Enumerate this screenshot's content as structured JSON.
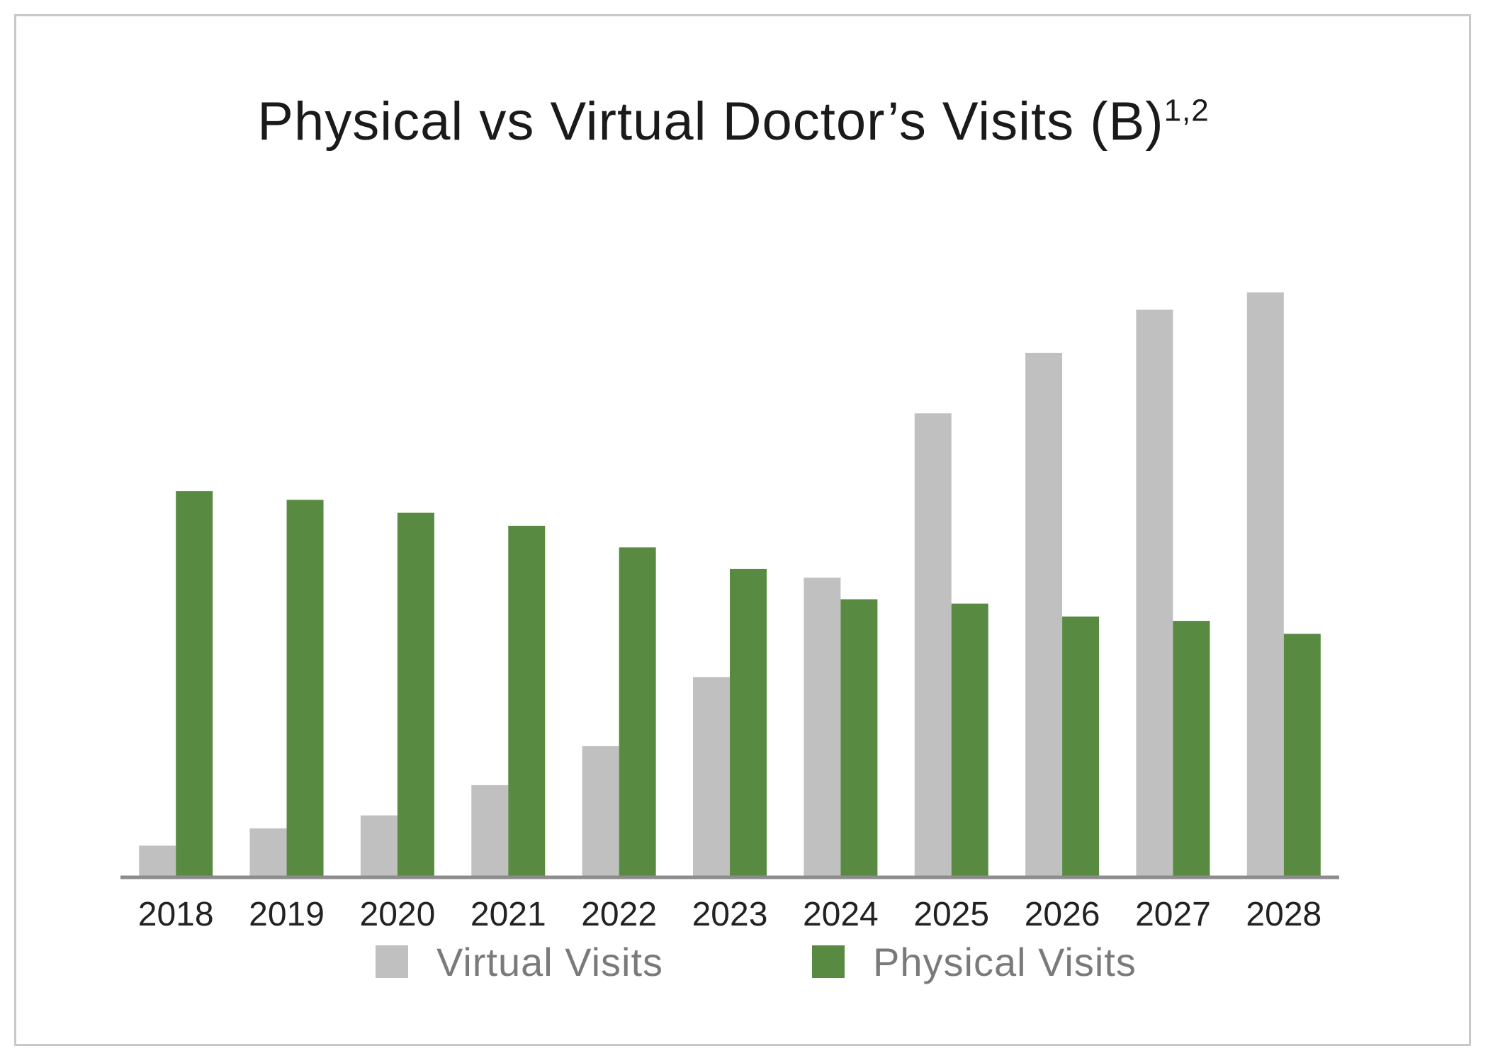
{
  "chart_data": {
    "type": "bar",
    "title": "Physical vs Virtual Doctor’s Visits (B)",
    "title_superscript": "1,2",
    "xlabel": "",
    "ylabel": "",
    "categories": [
      "2018",
      "2019",
      "2020",
      "2021",
      "2022",
      "2023",
      "2024",
      "2025",
      "2026",
      "2027",
      "2028"
    ],
    "series": [
      {
        "name": "Virtual Visits",
        "color": "#c0c0c0",
        "values": [
          0.07,
          0.11,
          0.14,
          0.21,
          0.3,
          0.46,
          0.69,
          1.07,
          1.21,
          1.31,
          1.35
        ]
      },
      {
        "name": "Physical Visits",
        "color": "#588b41",
        "values": [
          0.89,
          0.87,
          0.84,
          0.81,
          0.76,
          0.71,
          0.64,
          0.63,
          0.6,
          0.59,
          0.56
        ]
      }
    ],
    "ylim": [
      0,
      1.6
    ],
    "grid": false,
    "legend_position": "bottom",
    "axis_color": "#8c8c8c"
  }
}
